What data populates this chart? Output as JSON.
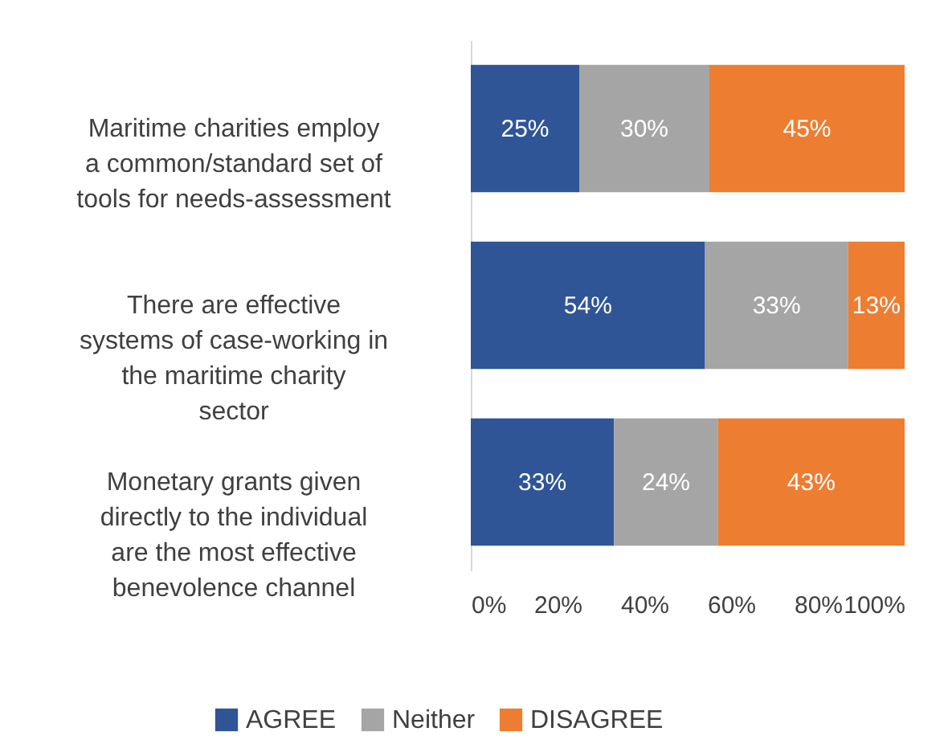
{
  "chart_data": {
    "type": "bar",
    "orientation": "horizontal",
    "stacked": true,
    "categories": [
      "Maritime charities employ a common/standard set of tools for needs-assessment",
      "There are effective systems of case-working in the maritime charity sector",
      "Monetary grants given directly to the individual are the most effective benevolence channel"
    ],
    "series": [
      {
        "name": "AGREE",
        "color": "#2f5597",
        "values": [
          25,
          54,
          33
        ],
        "value_labels": [
          "25%",
          "54%",
          "33%"
        ]
      },
      {
        "name": "Neither",
        "color": "#a5a5a5",
        "values": [
          30,
          33,
          24
        ],
        "value_labels": [
          "30%",
          "33%",
          "24%"
        ]
      },
      {
        "name": "DISAGREE",
        "color": "#ed7d31",
        "values": [
          45,
          13,
          43
        ],
        "value_labels": [
          "45%",
          "13%",
          "43%"
        ]
      }
    ],
    "xlim": [
      0,
      100
    ],
    "xticks": [
      {
        "value": 0,
        "label": "0%"
      },
      {
        "value": 20,
        "label": "20%"
      },
      {
        "value": 40,
        "label": "40%"
      },
      {
        "value": 60,
        "label": "60%"
      },
      {
        "value": 80,
        "label": "80%"
      },
      {
        "value": 100,
        "label": "100%"
      }
    ],
    "legend": "bottom"
  }
}
